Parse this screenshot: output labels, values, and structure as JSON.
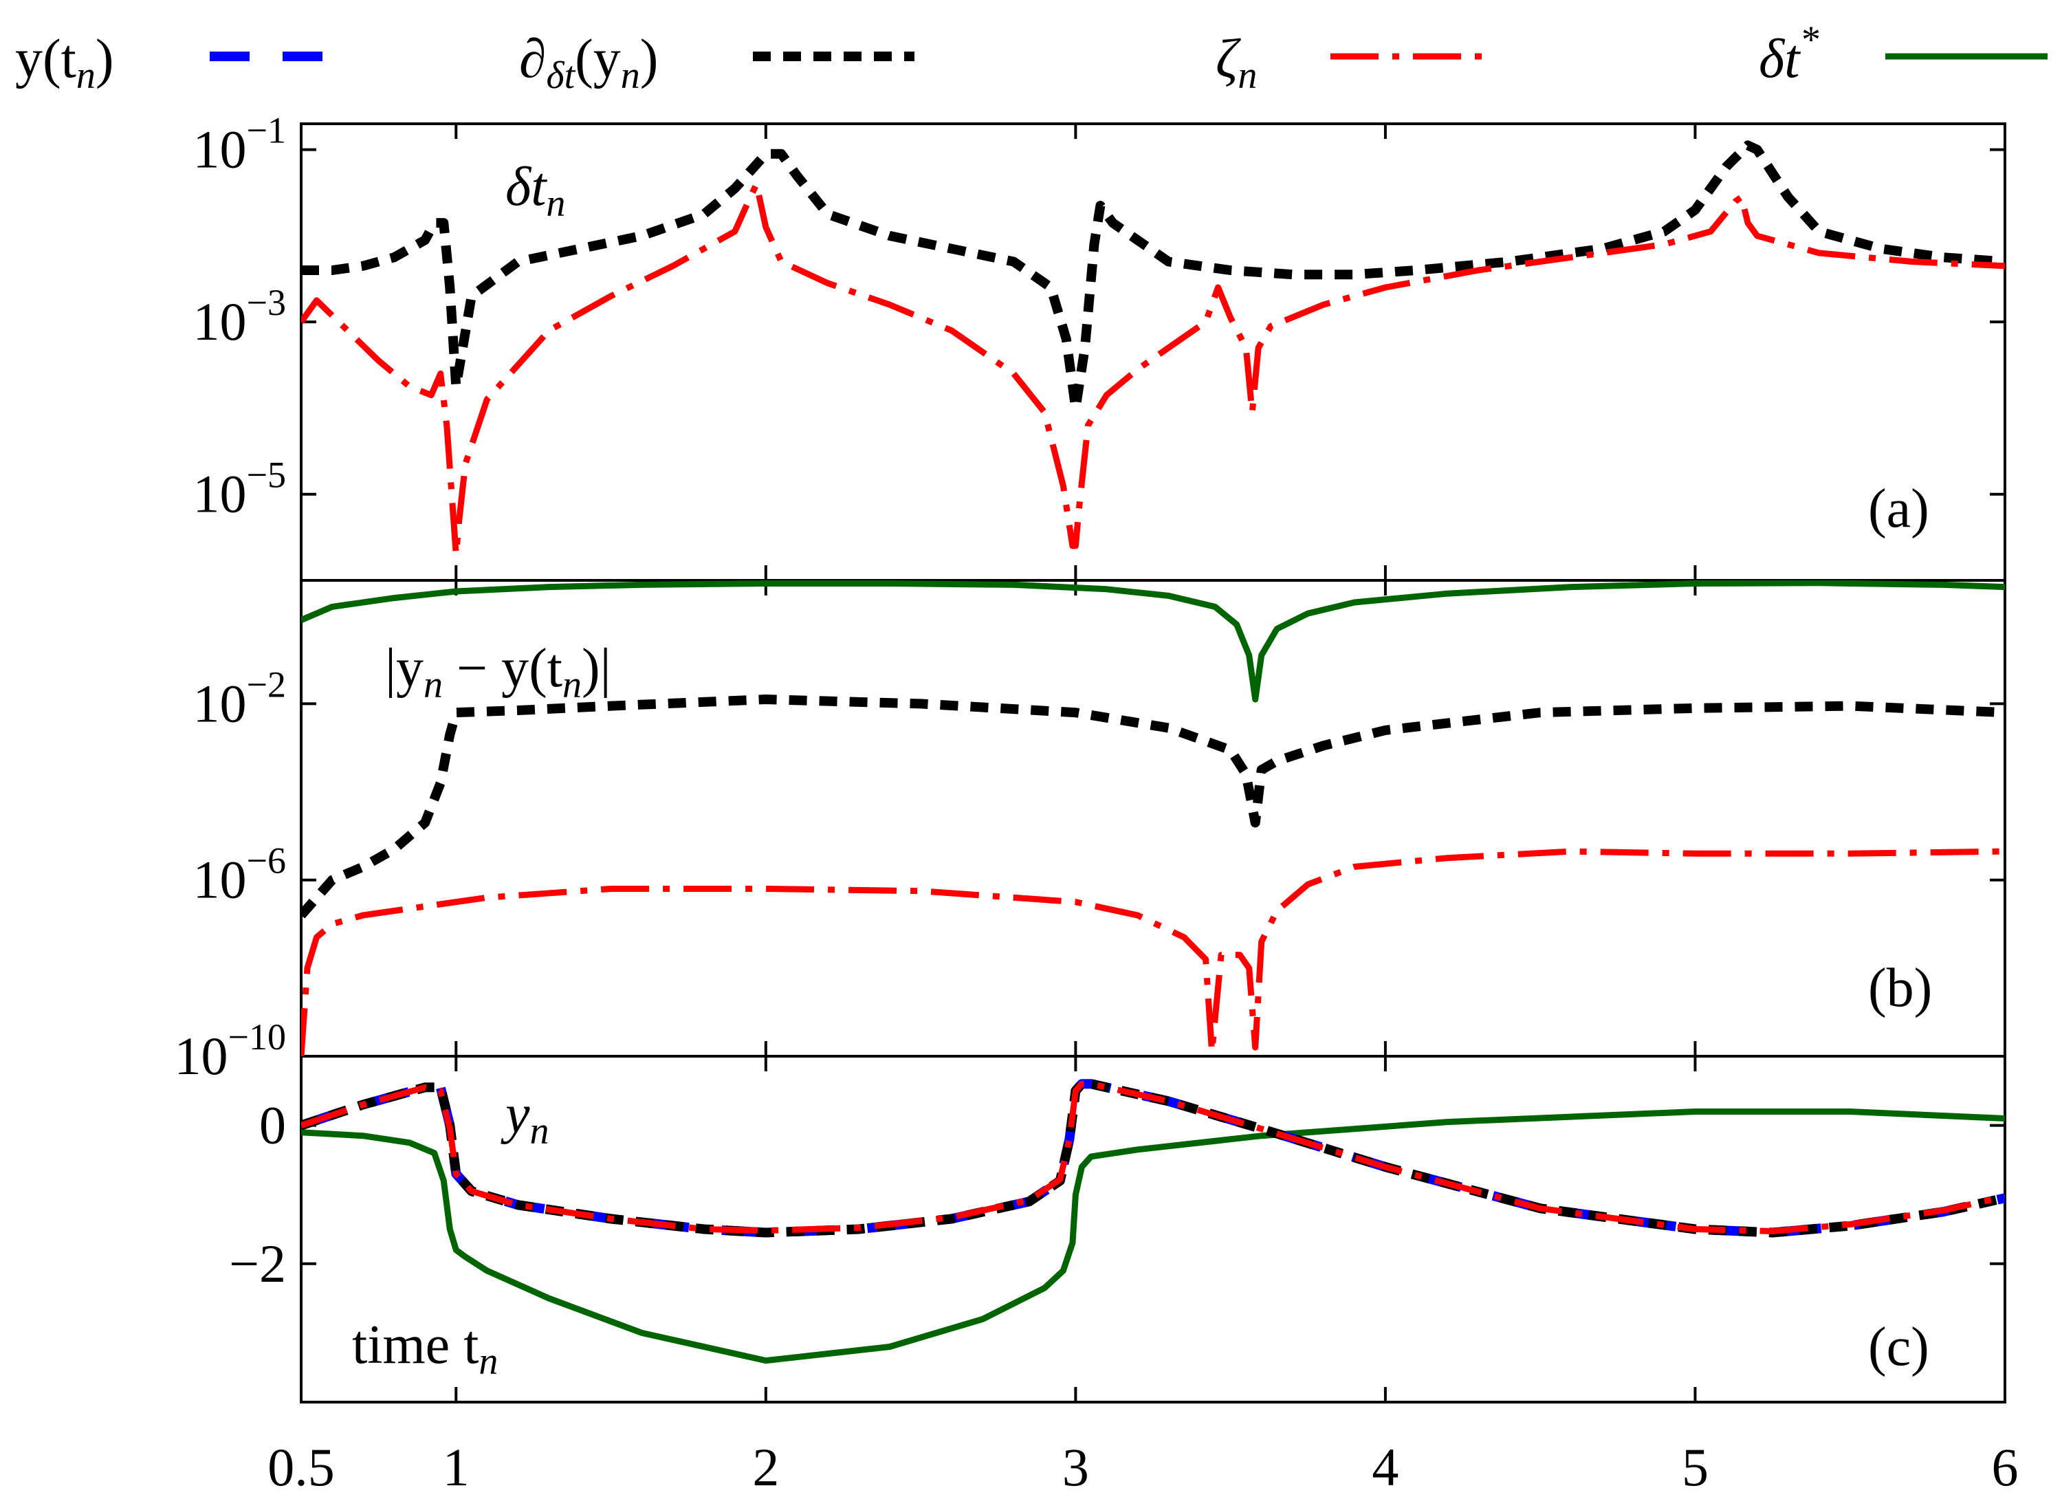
{
  "legend": [
    {
      "key": "y",
      "label": "y(t",
      "sub": "n",
      "tail": ")",
      "color": "#0000ff",
      "style": "dashed"
    },
    {
      "key": "d",
      "label": "∂",
      "sub": "δt",
      "tail": "(y",
      "sub2": "n",
      "tail2": ")",
      "color": "#000000",
      "style": "dotted"
    },
    {
      "key": "z",
      "label": "ζ",
      "sub": "n",
      "tail": "",
      "color": "#ff0000",
      "style": "dashdot"
    },
    {
      "key": "s",
      "label": "δt",
      "sup": "*",
      "tail": "",
      "color": "#006400",
      "style": "solid"
    }
  ],
  "colors": {
    "exact": "#0000ff",
    "derivative": "#000000",
    "zeta": "#ff0000",
    "delta_star": "#006400"
  },
  "chart_data": [
    {
      "id": "a",
      "type": "line",
      "panel_label": "(a)",
      "annotation": {
        "text": "δt",
        "sub": "n"
      },
      "yscale": "log",
      "ylim_log10": [
        -6.0,
        -0.7
      ],
      "yticks": [
        {
          "v": -1,
          "label": "10",
          "exp": "−1"
        },
        {
          "v": -3,
          "label": "10",
          "exp": "−3"
        },
        {
          "v": -5,
          "label": "10",
          "exp": "−5"
        }
      ],
      "xlim": [
        0.5,
        6
      ],
      "series": [
        {
          "name": "∂δt(yn)",
          "style": "dotted",
          "color": "#000000",
          "x": [
            0.5,
            0.6,
            0.7,
            0.8,
            0.9,
            0.93,
            0.96,
            0.98,
            1.0,
            1.05,
            1.2,
            1.4,
            1.6,
            1.8,
            1.9,
            2.0,
            2.05,
            2.1,
            2.2,
            2.4,
            2.6,
            2.8,
            2.92,
            2.97,
            3.0,
            3.03,
            3.06,
            3.08,
            3.12,
            3.3,
            3.5,
            3.7,
            3.9,
            4.1,
            4.4,
            4.7,
            4.9,
            5.0,
            5.1,
            5.17,
            5.2,
            5.3,
            5.4,
            5.6,
            5.8,
            6.0
          ],
          "logy": [
            -2.4,
            -2.4,
            -2.35,
            -2.25,
            -2.05,
            -1.85,
            -1.85,
            -2.6,
            -3.75,
            -2.7,
            -2.3,
            -2.15,
            -2.0,
            -1.75,
            -1.45,
            -1.05,
            -1.05,
            -1.3,
            -1.75,
            -2.0,
            -2.15,
            -2.3,
            -2.6,
            -3.2,
            -4.0,
            -3.3,
            -2.1,
            -1.65,
            -1.85,
            -2.3,
            -2.4,
            -2.45,
            -2.45,
            -2.4,
            -2.3,
            -2.15,
            -1.95,
            -1.7,
            -1.2,
            -0.95,
            -1.0,
            -1.55,
            -1.95,
            -2.15,
            -2.25,
            -2.3
          ]
        },
        {
          "name": "ζn",
          "style": "dashdot",
          "color": "#ff0000",
          "x": [
            0.5,
            0.55,
            0.65,
            0.75,
            0.85,
            0.92,
            0.95,
            0.97,
            0.99,
            1.0,
            1.01,
            1.03,
            1.1,
            1.3,
            1.5,
            1.7,
            1.9,
            1.95,
            1.97,
            2.0,
            2.05,
            2.2,
            2.4,
            2.6,
            2.8,
            2.9,
            2.96,
            2.99,
            3.0,
            3.01,
            3.04,
            3.1,
            3.2,
            3.3,
            3.42,
            3.46,
            3.5,
            3.55,
            3.57,
            3.59,
            3.63,
            3.8,
            4.0,
            4.3,
            4.6,
            4.9,
            5.05,
            5.13,
            5.15,
            5.17,
            5.2,
            5.4,
            5.7,
            6.0
          ],
          "logy": [
            -3.0,
            -2.75,
            -3.1,
            -3.45,
            -3.75,
            -3.85,
            -3.6,
            -4.2,
            -5.2,
            -5.7,
            -5.3,
            -4.65,
            -3.9,
            -3.1,
            -2.7,
            -2.35,
            -1.95,
            -1.55,
            -1.4,
            -1.9,
            -2.3,
            -2.55,
            -2.8,
            -3.1,
            -3.6,
            -4.05,
            -4.9,
            -5.6,
            -5.6,
            -5.2,
            -4.2,
            -3.85,
            -3.55,
            -3.3,
            -3.0,
            -2.6,
            -2.95,
            -3.3,
            -4.05,
            -3.3,
            -3.05,
            -2.8,
            -2.6,
            -2.4,
            -2.25,
            -2.1,
            -1.95,
            -1.6,
            -1.55,
            -1.85,
            -2.0,
            -2.2,
            -2.3,
            -2.35
          ]
        }
      ]
    },
    {
      "id": "b",
      "type": "line",
      "panel_label": "(b)",
      "annotation": {
        "text": "|y",
        "sub": "n",
        "tail": " − y(t",
        "sub2": "n",
        "tail2": ")|"
      },
      "yscale": "log",
      "ylim_log10": [
        -10.0,
        0.8
      ],
      "yticks": [
        {
          "v": -2,
          "label": "10",
          "exp": "−2"
        },
        {
          "v": -6,
          "label": "10",
          "exp": "−6"
        },
        {
          "v": -10,
          "label": "10",
          "exp": "−10"
        }
      ],
      "xlim": [
        0.5,
        6
      ],
      "series": [
        {
          "name": "δt*",
          "style": "solid",
          "color": "#006400",
          "x": [
            0.5,
            0.6,
            0.8,
            1.0,
            1.3,
            1.6,
            2.0,
            2.4,
            2.8,
            3.1,
            3.3,
            3.45,
            3.52,
            3.56,
            3.58,
            3.6,
            3.65,
            3.75,
            3.9,
            4.2,
            4.6,
            5.0,
            5.4,
            5.8,
            6.0
          ],
          "logy": [
            -0.1,
            0.2,
            0.4,
            0.55,
            0.65,
            0.7,
            0.73,
            0.73,
            0.7,
            0.6,
            0.45,
            0.2,
            -0.2,
            -0.9,
            -1.9,
            -0.9,
            -0.3,
            0.05,
            0.3,
            0.5,
            0.65,
            0.73,
            0.74,
            0.7,
            0.65
          ]
        },
        {
          "name": "∂δt(yn)",
          "style": "dotted",
          "color": "#000000",
          "x": [
            0.5,
            0.6,
            0.7,
            0.8,
            0.9,
            0.95,
            0.98,
            1.0,
            1.2,
            1.5,
            2.0,
            2.5,
            3.0,
            3.3,
            3.5,
            3.55,
            3.58,
            3.6,
            3.65,
            3.8,
            4.0,
            4.5,
            5.0,
            5.5,
            6.0
          ],
          "logy": [
            -6.8,
            -6.0,
            -5.7,
            -5.3,
            -4.7,
            -3.8,
            -2.7,
            -2.2,
            -2.15,
            -2.05,
            -1.9,
            -2.0,
            -2.2,
            -2.55,
            -3.05,
            -3.6,
            -4.7,
            -3.5,
            -3.3,
            -2.95,
            -2.6,
            -2.2,
            -2.1,
            -2.05,
            -2.2
          ]
        },
        {
          "name": "ζn",
          "style": "dashdot",
          "color": "#ff0000",
          "x": [
            0.5,
            0.52,
            0.55,
            0.6,
            0.7,
            0.9,
            1.1,
            1.5,
            2.0,
            2.5,
            3.0,
            3.2,
            3.35,
            3.42,
            3.44,
            3.47,
            3.53,
            3.56,
            3.58,
            3.6,
            3.65,
            3.75,
            3.9,
            4.2,
            4.6,
            5.0,
            5.5,
            6.0
          ],
          "logy": [
            -10.0,
            -8.0,
            -7.3,
            -7.0,
            -6.8,
            -6.6,
            -6.4,
            -6.2,
            -6.2,
            -6.25,
            -6.5,
            -6.8,
            -7.3,
            -7.8,
            -9.9,
            -7.7,
            -7.7,
            -8.0,
            -9.8,
            -7.4,
            -6.7,
            -6.1,
            -5.7,
            -5.5,
            -5.35,
            -5.4,
            -5.4,
            -5.35
          ]
        }
      ]
    },
    {
      "id": "c",
      "type": "line",
      "panel_label": "(c)",
      "annotations": [
        {
          "text": "y",
          "sub": "n"
        },
        {
          "text": "time t",
          "sub": "n"
        }
      ],
      "yscale": "linear",
      "ylim": [
        -4.0,
        1.0
      ],
      "yticks": [
        {
          "v": 0,
          "label": "0"
        },
        {
          "v": -2,
          "label": "−2"
        }
      ],
      "xlim": [
        0.5,
        6
      ],
      "xticks": [
        {
          "v": 0.5,
          "label": "0.5"
        },
        {
          "v": 1,
          "label": "1"
        },
        {
          "v": 2,
          "label": "2"
        },
        {
          "v": 3,
          "label": "3"
        },
        {
          "v": 4,
          "label": "4"
        },
        {
          "v": 5,
          "label": "5"
        },
        {
          "v": 6,
          "label": "6"
        }
      ],
      "series": [
        {
          "name": "δt*",
          "style": "solid",
          "color": "#006400",
          "x": [
            0.5,
            0.7,
            0.85,
            0.93,
            0.96,
            0.98,
            1.0,
            1.03,
            1.1,
            1.3,
            1.6,
            2.0,
            2.4,
            2.7,
            2.9,
            2.96,
            2.99,
            3.0,
            3.02,
            3.05,
            3.2,
            3.6,
            4.2,
            5.0,
            5.5,
            6.0
          ],
          "y": [
            -0.1,
            -0.15,
            -0.25,
            -0.4,
            -0.8,
            -1.5,
            -1.8,
            -1.9,
            -2.1,
            -2.5,
            -3.0,
            -3.4,
            -3.2,
            -2.8,
            -2.35,
            -2.1,
            -1.7,
            -1.0,
            -0.6,
            -0.45,
            -0.35,
            -0.15,
            0.05,
            0.2,
            0.2,
            0.1
          ]
        },
        {
          "name": "y(tn)",
          "style": "dashed",
          "color": "#0000ff",
          "x": [
            0.5,
            0.7,
            0.9,
            0.95,
            0.98,
            1.0,
            1.05,
            1.2,
            1.5,
            1.8,
            2.0,
            2.3,
            2.6,
            2.85,
            2.95,
            2.98,
            3.0,
            3.02,
            3.05,
            3.1,
            3.3,
            3.6,
            4.0,
            4.5,
            5.0,
            5.25,
            5.5,
            5.8,
            6.0
          ],
          "y": [
            0.0,
            0.3,
            0.55,
            0.55,
            0.0,
            -0.7,
            -0.95,
            -1.15,
            -1.35,
            -1.5,
            -1.55,
            -1.5,
            -1.35,
            -1.1,
            -0.8,
            -0.2,
            0.5,
            0.6,
            0.6,
            0.55,
            0.35,
            -0.05,
            -0.6,
            -1.2,
            -1.5,
            -1.55,
            -1.45,
            -1.25,
            -1.05
          ]
        },
        {
          "name": "∂δt(yn)",
          "style": "dotted",
          "color": "#000000",
          "x": [
            0.5,
            0.7,
            0.9,
            0.95,
            0.98,
            1.0,
            1.05,
            1.2,
            1.5,
            1.8,
            2.0,
            2.3,
            2.6,
            2.85,
            2.95,
            2.98,
            3.0,
            3.02,
            3.05,
            3.1,
            3.3,
            3.6,
            4.0,
            4.5,
            5.0,
            5.25,
            5.5,
            5.8,
            6.0
          ],
          "y": [
            0.0,
            0.3,
            0.55,
            0.55,
            0.0,
            -0.7,
            -0.95,
            -1.15,
            -1.35,
            -1.5,
            -1.55,
            -1.5,
            -1.35,
            -1.1,
            -0.8,
            -0.2,
            0.5,
            0.6,
            0.6,
            0.55,
            0.35,
            -0.05,
            -0.6,
            -1.2,
            -1.5,
            -1.55,
            -1.45,
            -1.25,
            -1.05
          ]
        },
        {
          "name": "ζn",
          "style": "dashdot",
          "color": "#ff0000",
          "x": [
            0.5,
            0.7,
            0.9,
            0.95,
            0.98,
            1.0,
            1.05,
            1.2,
            1.5,
            1.8,
            2.0,
            2.3,
            2.6,
            2.85,
            2.95,
            2.98,
            3.0,
            3.02,
            3.05,
            3.1,
            3.3,
            3.6,
            4.0,
            4.5,
            5.0,
            5.25,
            5.5,
            5.8,
            6.0
          ],
          "y": [
            0.0,
            0.3,
            0.55,
            0.5,
            -0.05,
            -0.7,
            -0.95,
            -1.15,
            -1.35,
            -1.5,
            -1.52,
            -1.48,
            -1.33,
            -1.08,
            -0.78,
            -0.2,
            0.5,
            0.6,
            0.6,
            0.55,
            0.35,
            -0.05,
            -0.6,
            -1.2,
            -1.5,
            -1.53,
            -1.43,
            -1.23,
            -1.03
          ]
        }
      ]
    }
  ]
}
